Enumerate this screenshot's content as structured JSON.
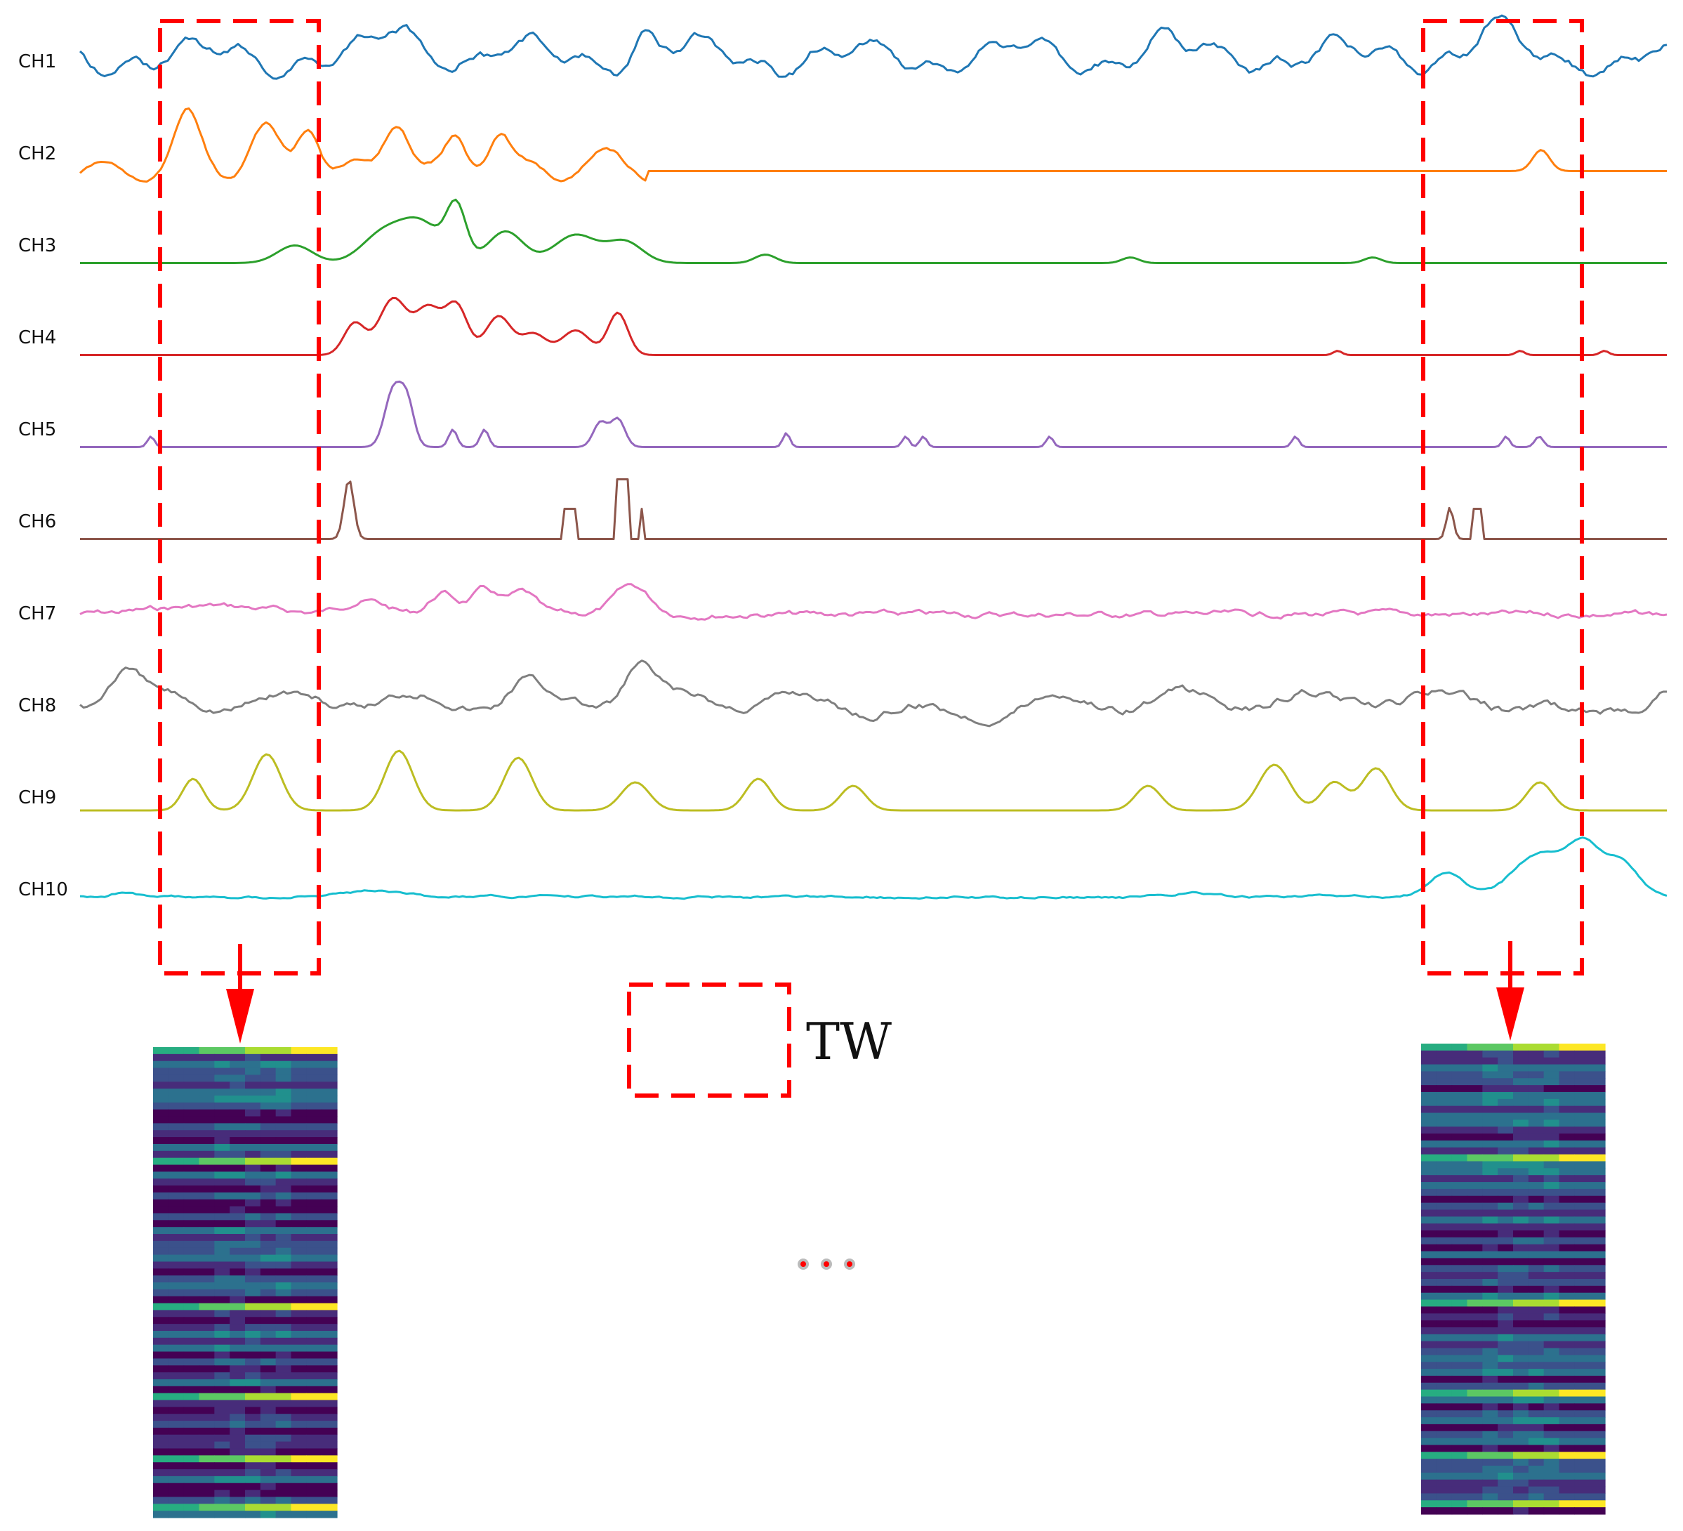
{
  "channels": [
    {
      "label": "CH1",
      "color": "#1f77b4"
    },
    {
      "label": "CH2",
      "color": "#ff7f0e"
    },
    {
      "label": "CH3",
      "color": "#2ca02c"
    },
    {
      "label": "CH4",
      "color": "#d62728"
    },
    {
      "label": "CH5",
      "color": "#9467bd"
    },
    {
      "label": "CH6",
      "color": "#8c564b"
    },
    {
      "label": "CH7",
      "color": "#e377c2"
    },
    {
      "label": "CH8",
      "color": "#7f7f7f"
    },
    {
      "label": "CH9",
      "color": "#bcbd22"
    },
    {
      "label": "CH10",
      "color": "#17becf"
    }
  ],
  "window_box_color": "#ff0000",
  "legend": {
    "label": "TW"
  },
  "ellipsis_dots": 3,
  "heatmap_colormap": "viridis"
}
